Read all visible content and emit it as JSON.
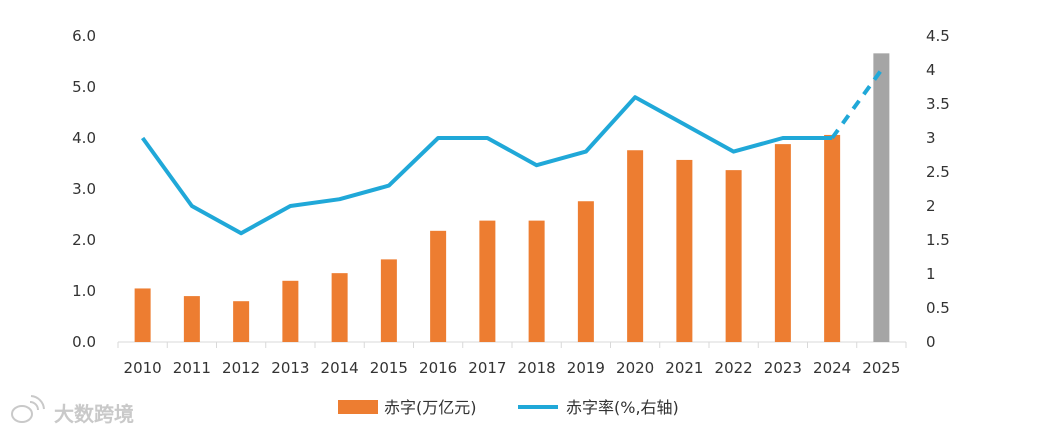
{
  "chart_data": {
    "type": "bar+line",
    "categories": [
      "2010",
      "2011",
      "2012",
      "2013",
      "2014",
      "2015",
      "2016",
      "2017",
      "2018",
      "2019",
      "2020",
      "2021",
      "2022",
      "2023",
      "2024",
      "2025"
    ],
    "series": [
      {
        "name": "赤字(万亿元)",
        "type": "bar",
        "axis": "left",
        "values": [
          1.05,
          0.9,
          0.8,
          1.2,
          1.35,
          1.62,
          2.18,
          2.38,
          2.38,
          2.76,
          3.76,
          3.57,
          3.37,
          3.88,
          4.06,
          5.66
        ],
        "highlight_last": true
      },
      {
        "name": "赤字率(%,右轴)",
        "type": "line",
        "axis": "right",
        "values": [
          3.0,
          2.0,
          1.6,
          2.0,
          2.1,
          2.3,
          3.0,
          3.0,
          2.6,
          2.8,
          3.6,
          3.2,
          2.8,
          3.0,
          3.0,
          4.0
        ],
        "dashed_last_segment": true
      }
    ],
    "y_left": {
      "ticks": [
        "0.0",
        "1.0",
        "2.0",
        "3.0",
        "4.0",
        "5.0",
        "6.0"
      ],
      "lim": [
        0,
        6
      ]
    },
    "y_right": {
      "ticks": [
        "0",
        "0.5",
        "1",
        "1.5",
        "2",
        "2.5",
        "3",
        "3.5",
        "4",
        "4.5"
      ],
      "lim": [
        0,
        4.5
      ]
    },
    "grid": false,
    "legend": "bottom-center"
  },
  "colors": {
    "bar": "#ED7D31",
    "bar_last": "#A5A5A5",
    "line": "#20A8D8",
    "axis": "#D9D9D9",
    "text": "#333333"
  },
  "legend": {
    "bar_label": "赤字(万亿元)",
    "line_label": "赤字率(%,右轴)"
  },
  "watermark": {
    "text": "大数跨境",
    "icon": "weibo-logo-icon"
  }
}
